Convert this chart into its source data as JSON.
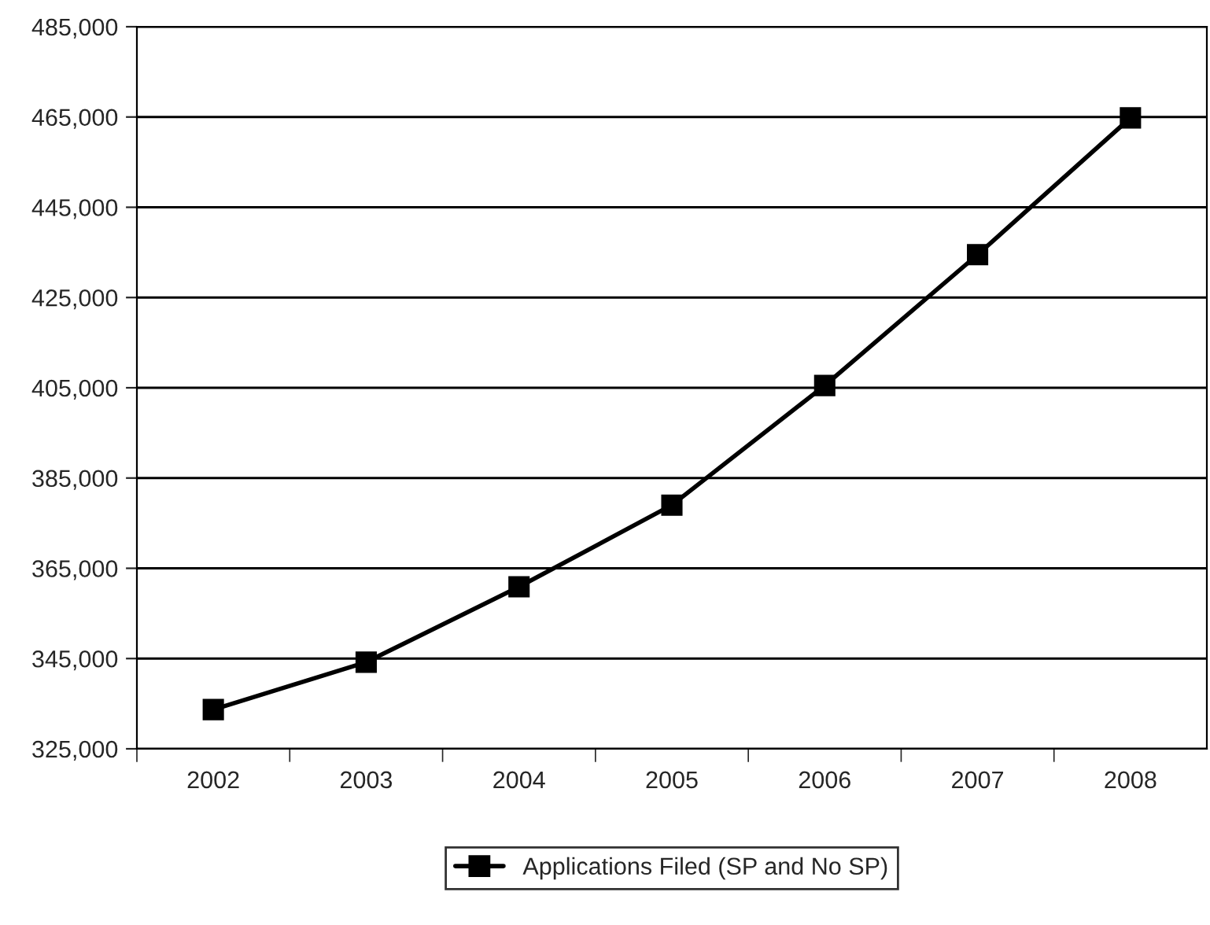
{
  "chart_data": {
    "type": "line",
    "categories": [
      "2002",
      "2003",
      "2004",
      "2005",
      "2006",
      "2007",
      "2008"
    ],
    "series": [
      {
        "name": "Applications Filed (SP and No SP)",
        "color": "#000000",
        "values": [
          333700,
          344200,
          360900,
          379000,
          405500,
          434500,
          464800
        ]
      }
    ],
    "ylim": [
      325000,
      485000
    ],
    "yticks": [
      {
        "value": 325000,
        "label": "325,000"
      },
      {
        "value": 345000,
        "label": "345,000"
      },
      {
        "value": 365000,
        "label": "365,000"
      },
      {
        "value": 385000,
        "label": "385,000"
      },
      {
        "value": 405000,
        "label": "405,000"
      },
      {
        "value": 425000,
        "label": "425,000"
      },
      {
        "value": 445000,
        "label": "445,000"
      },
      {
        "value": 465000,
        "label": "465,000"
      },
      {
        "value": 485000,
        "label": "485,000"
      }
    ],
    "grid": "y",
    "legend": "bottom",
    "marker": "square",
    "line_style": "solid"
  }
}
